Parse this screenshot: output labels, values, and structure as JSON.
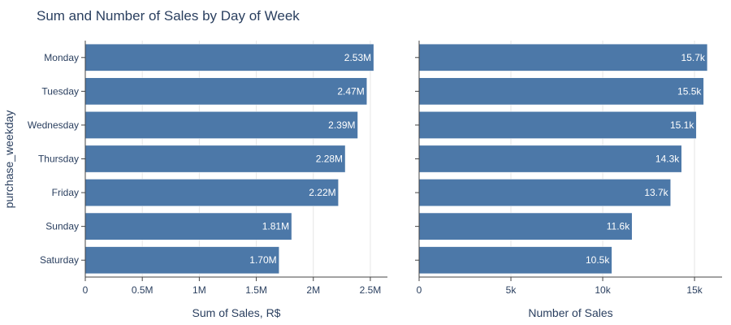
{
  "chart_data": {
    "type": "bar",
    "orientation": "horizontal",
    "title": "Sum and Number of Sales by Day of Week",
    "ylabel": "purchase_weekday",
    "categories": [
      "Monday",
      "Tuesday",
      "Wednesday",
      "Thursday",
      "Friday",
      "Sunday",
      "Saturday"
    ],
    "bar_color": "#4c78a8",
    "panels": [
      {
        "xlabel": "Sum of Sales, R$",
        "xlim": [
          0,
          2650000
        ],
        "ticks": [
          0,
          500000,
          1000000,
          1500000,
          2000000,
          2500000
        ],
        "tick_labels": [
          "0",
          "0.5M",
          "1M",
          "1.5M",
          "2M",
          "2.5M"
        ],
        "values": [
          2530000,
          2470000,
          2390000,
          2280000,
          2220000,
          1810000,
          1700000
        ],
        "labels": [
          "2.53M",
          "2.47M",
          "2.39M",
          "2.28M",
          "2.22M",
          "1.81M",
          "1.70M"
        ]
      },
      {
        "xlabel": "Number of Sales",
        "xlim": [
          0,
          16500
        ],
        "ticks": [
          0,
          5000,
          10000,
          15000
        ],
        "tick_labels": [
          "0",
          "5k",
          "10k",
          "15k"
        ],
        "values": [
          15700,
          15500,
          15100,
          14300,
          13700,
          11600,
          10500
        ],
        "labels": [
          "15.7k",
          "15.5k",
          "15.1k",
          "14.3k",
          "13.7k",
          "11.6k",
          "10.5k"
        ]
      }
    ]
  }
}
